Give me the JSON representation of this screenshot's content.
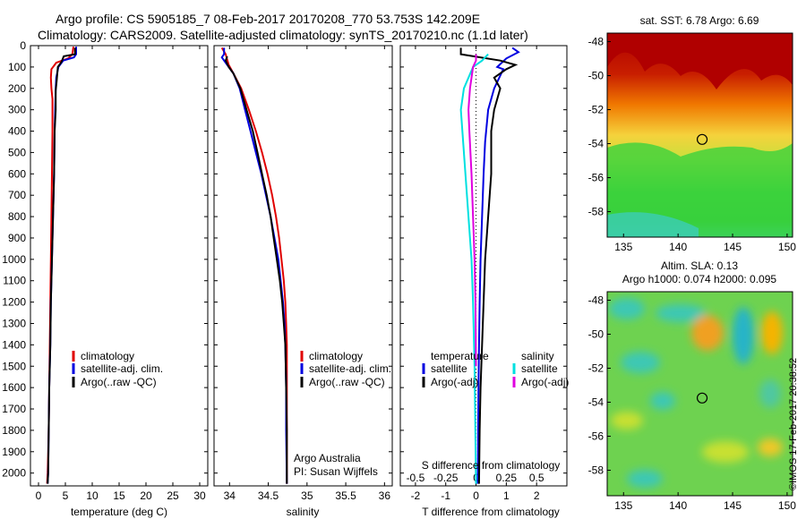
{
  "header": {
    "line1": "Argo profile: CS 5905185_7 08-Feb-2017 20170208_770 53.753S 142.209E",
    "line2": "Climatology: CARS2009. Satellite-adjusted climatology: synTS_20170210.nc (1.1d later)"
  },
  "colors": {
    "climatology": "#e00000",
    "satellite": "#0000e0",
    "argo": "#000000",
    "sat_s": "#00e0e0",
    "argo_s": "#e000e0"
  },
  "chart_data": [
    {
      "type": "line",
      "id": "temperature",
      "xlabel": "temperature (deg C)",
      "ylabel": "",
      "xlim": [
        -1.5,
        31.5
      ],
      "ylim": [
        2060,
        0
      ],
      "xticks": [
        0,
        5,
        10,
        15,
        20,
        25,
        30
      ],
      "yticks": [
        0,
        100,
        200,
        300,
        400,
        500,
        600,
        700,
        800,
        900,
        1000,
        1100,
        1200,
        1300,
        1400,
        1500,
        1600,
        1700,
        1800,
        1900,
        2000
      ],
      "legend": [
        "climatology",
        "satellite-adj. clim.",
        "Argo(..raw -QC)"
      ],
      "series": [
        {
          "name": "climatology",
          "color": "#e00000",
          "points": [
            [
              6.5,
              5
            ],
            [
              6.3,
              40
            ],
            [
              5.5,
              60
            ],
            [
              3.3,
              80
            ],
            [
              2.4,
              110
            ],
            [
              2.3,
              150
            ],
            [
              2.4,
              200
            ],
            [
              2.6,
              250
            ],
            [
              2.6,
              400
            ],
            [
              2.5,
              600
            ],
            [
              2.4,
              800
            ],
            [
              2.3,
              1000
            ],
            [
              2.2,
              1200
            ],
            [
              2.1,
              1400
            ],
            [
              2.0,
              1600
            ],
            [
              1.9,
              1800
            ],
            [
              1.7,
              2000
            ],
            [
              1.6,
              2050
            ]
          ]
        },
        {
          "name": "satellite-adj. clim.",
          "color": "#0000e0",
          "points": [
            [
              7.0,
              5
            ],
            [
              7.0,
              40
            ],
            [
              6.6,
              55
            ],
            [
              4.6,
              70
            ],
            [
              3.7,
              100
            ],
            [
              3.3,
              150
            ],
            [
              3.2,
              200
            ],
            [
              3.1,
              300
            ],
            [
              3.0,
              400
            ],
            [
              2.9,
              600
            ],
            [
              2.7,
              800
            ],
            [
              2.5,
              1000
            ],
            [
              2.3,
              1200
            ],
            [
              2.2,
              1400
            ],
            [
              2.0,
              1600
            ],
            [
              1.9,
              1800
            ],
            [
              1.8,
              2000
            ],
            [
              1.7,
              2050
            ]
          ]
        },
        {
          "name": "Argo(..raw -QC)",
          "color": "#000000",
          "points": [
            [
              6.8,
              10
            ],
            [
              6.8,
              40
            ],
            [
              4.7,
              50
            ],
            [
              4.3,
              75
            ],
            [
              3.6,
              100
            ],
            [
              3.4,
              160
            ],
            [
              3.2,
              210
            ],
            [
              3.2,
              300
            ],
            [
              3.0,
              400
            ],
            [
              2.9,
              600
            ],
            [
              2.7,
              800
            ],
            [
              2.5,
              1000
            ],
            [
              2.3,
              1200
            ],
            [
              2.2,
              1400
            ],
            [
              2.0,
              1600
            ],
            [
              1.9,
              1800
            ],
            [
              1.8,
              2000
            ],
            [
              1.7,
              2050
            ]
          ]
        }
      ]
    },
    {
      "type": "line",
      "id": "salinity",
      "xlabel": "salinity",
      "xlim": [
        33.8,
        36.1
      ],
      "ylim": [
        2060,
        0
      ],
      "xticks": [
        34,
        34.5,
        35,
        35.5,
        36
      ],
      "legend": [
        "climatology",
        "satellite-adj. clim.",
        "Argo(..raw -QC)"
      ],
      "series": [
        {
          "name": "climatology",
          "color": "#e00000",
          "points": [
            [
              33.9,
              10
            ],
            [
              33.95,
              40
            ],
            [
              33.99,
              90
            ],
            [
              34.05,
              130
            ],
            [
              34.15,
              200
            ],
            [
              34.25,
              300
            ],
            [
              34.34,
              400
            ],
            [
              34.42,
              500
            ],
            [
              34.49,
              600
            ],
            [
              34.55,
              700
            ],
            [
              34.6,
              800
            ],
            [
              34.64,
              900
            ],
            [
              34.67,
              1000
            ],
            [
              34.7,
              1100
            ],
            [
              34.72,
              1200
            ],
            [
              34.73,
              1300
            ],
            [
              34.74,
              1400
            ],
            [
              34.74,
              1600
            ],
            [
              34.74,
              1800
            ],
            [
              34.74,
              2050
            ]
          ]
        },
        {
          "name": "satellite-adj. clim.",
          "color": "#0000e0",
          "points": [
            [
              33.93,
              10
            ],
            [
              33.93,
              40
            ],
            [
              33.9,
              55
            ],
            [
              33.97,
              90
            ],
            [
              34.05,
              130
            ],
            [
              34.13,
              200
            ],
            [
              34.2,
              300
            ],
            [
              34.27,
              400
            ],
            [
              34.34,
              500
            ],
            [
              34.41,
              600
            ],
            [
              34.47,
              700
            ],
            [
              34.53,
              800
            ],
            [
              34.58,
              900
            ],
            [
              34.63,
              1000
            ],
            [
              34.66,
              1100
            ],
            [
              34.69,
              1200
            ],
            [
              34.71,
              1300
            ],
            [
              34.72,
              1400
            ],
            [
              34.73,
              1600
            ],
            [
              34.73,
              1800
            ],
            [
              34.74,
              2050
            ]
          ]
        },
        {
          "name": "Argo(..raw -QC)",
          "color": "#000000",
          "points": [
            [
              33.97,
              50
            ],
            [
              33.95,
              70
            ],
            [
              33.99,
              100
            ],
            [
              34.05,
              130
            ],
            [
              34.14,
              200
            ],
            [
              34.22,
              300
            ],
            [
              34.3,
              400
            ],
            [
              34.36,
              500
            ],
            [
              34.42,
              600
            ],
            [
              34.48,
              700
            ],
            [
              34.53,
              800
            ],
            [
              34.57,
              900
            ],
            [
              34.61,
              1000
            ],
            [
              34.65,
              1100
            ],
            [
              34.68,
              1200
            ],
            [
              34.7,
              1300
            ],
            [
              34.72,
              1400
            ],
            [
              34.73,
              1600
            ],
            [
              34.74,
              1800
            ],
            [
              34.74,
              2050
            ]
          ]
        }
      ],
      "annotations": [
        "Argo Australia",
        "PI: Susan Wijffels"
      ]
    },
    {
      "type": "line",
      "id": "differences",
      "xlabel": "T difference from climatology",
      "xlabel_top": "S difference from climatology",
      "xlim": [
        -2.5,
        3.0
      ],
      "ylim": [
        2060,
        0
      ],
      "xticks": [
        -2,
        -1,
        0,
        1,
        2
      ],
      "xticks_s": [
        "-0.5",
        "-0.25",
        "0",
        "0.25",
        "0.5"
      ],
      "legend_t_title": "temperature",
      "legend_s_title": "salinity",
      "legend": [
        "satellite",
        "Argo(-adj)",
        "satellite",
        "Argo(-adj)"
      ],
      "series": [
        {
          "name": "T satellite",
          "color": "#0000e0",
          "points": [
            [
              1.2,
              10
            ],
            [
              1.4,
              30
            ],
            [
              1.0,
              60
            ],
            [
              0.7,
              100
            ],
            [
              0.9,
              110
            ],
            [
              0.6,
              200
            ],
            [
              0.4,
              300
            ],
            [
              0.3,
              450
            ],
            [
              0.25,
              600
            ],
            [
              0.2,
              800
            ],
            [
              0.15,
              1000
            ],
            [
              0.12,
              1200
            ],
            [
              0.1,
              1400
            ],
            [
              0.08,
              1600
            ],
            [
              0.07,
              1800
            ],
            [
              0.06,
              2050
            ]
          ]
        },
        {
          "name": "T Argo(-adj)",
          "color": "#000000",
          "points": [
            [
              -0.5,
              10
            ],
            [
              -0.5,
              40
            ],
            [
              0.8,
              70
            ],
            [
              1.3,
              90
            ],
            [
              1.0,
              110
            ],
            [
              0.6,
              150
            ],
            [
              0.8,
              200
            ],
            [
              0.6,
              300
            ],
            [
              0.5,
              400
            ],
            [
              0.5,
              600
            ],
            [
              0.4,
              800
            ],
            [
              0.3,
              1000
            ],
            [
              0.25,
              1200
            ],
            [
              0.2,
              1400
            ],
            [
              0.15,
              1600
            ],
            [
              0.12,
              1800
            ],
            [
              0.1,
              2050
            ]
          ]
        },
        {
          "name": "S satellite",
          "color": "#00e0e0",
          "points": [
            [
              0.4,
              40
            ],
            [
              0.2,
              70
            ],
            [
              -0.1,
              100
            ],
            [
              -0.4,
              200
            ],
            [
              -0.5,
              300
            ],
            [
              -0.45,
              400
            ],
            [
              -0.35,
              600
            ],
            [
              -0.25,
              800
            ],
            [
              -0.15,
              1000
            ],
            [
              -0.1,
              1200
            ],
            [
              -0.05,
              1500
            ],
            [
              0.0,
              2050
            ]
          ]
        },
        {
          "name": "S Argo(-adj)",
          "color": "#e000e0",
          "points": [
            [
              0.0,
              40
            ],
            [
              0.0,
              70
            ],
            [
              -0.1,
              100
            ],
            [
              -0.2,
              200
            ],
            [
              -0.25,
              300
            ],
            [
              -0.22,
              400
            ],
            [
              -0.15,
              600
            ],
            [
              -0.1,
              800
            ],
            [
              -0.05,
              1000
            ],
            [
              -0.02,
              1200
            ],
            [
              0.0,
              1500
            ]
          ]
        }
      ]
    },
    {
      "type": "heatmap",
      "id": "sst-map",
      "title": "sat. SST: 6.78 Argo: 6.69",
      "xlim": [
        133.5,
        150.5
      ],
      "ylim": [
        -59.5,
        -47.5
      ],
      "xticks": [
        "135",
        "140",
        "145",
        "150"
      ],
      "yticks": [
        "-48",
        "-50",
        "-52",
        "-54",
        "-56",
        "-58"
      ],
      "marker": [
        142.209,
        -53.753
      ]
    },
    {
      "type": "heatmap",
      "id": "sla-map",
      "title": "Altim. SLA: 0.13",
      "subtitle": "Argo h1000: 0.074 h2000: 0.095",
      "xlim": [
        133.5,
        150.5
      ],
      "ylim": [
        -59.5,
        -47.5
      ],
      "xticks": [
        "135",
        "140",
        "145",
        "150"
      ],
      "yticks": [
        "-48",
        "-50",
        "-52",
        "-54",
        "-56",
        "-58"
      ],
      "marker": [
        142.209,
        -53.753
      ]
    }
  ],
  "footer": {
    "stamp": "©IMOS 17-Feb-2017 20:38:52"
  }
}
